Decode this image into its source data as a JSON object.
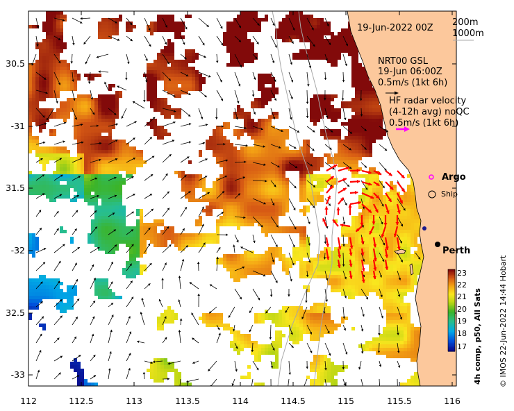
{
  "map": {
    "date_label": "19-Jun-2022 00Z",
    "isobath_labels": [
      "200m",
      "1000m"
    ],
    "gsl": {
      "title": "NRT00 GSL",
      "time": "19-Jun 06:00Z",
      "scale": "0.5m/s (1kt 6h)"
    },
    "hf_radar": {
      "title": "HF radar velocity",
      "subtitle": "(4-12h avg) noQC",
      "scale": "0.5m/s (1kt 6h)"
    },
    "legend": {
      "argo": "Argo",
      "ship": "Ship"
    },
    "places": {
      "perth": "Perth"
    },
    "colorbar": {
      "title": "4h comp, p50, All Sats",
      "ticks": [
        "23",
        "22",
        "21",
        "20",
        "19",
        "18",
        "17"
      ],
      "min": 17,
      "max": 23
    },
    "credit": "© IMOS 22-Jun-2022 14:44 Hobart",
    "axes": {
      "lon_ticks": [
        "112",
        "112.5",
        "113",
        "113.5",
        "114",
        "114.5",
        "115",
        "115.5",
        "116"
      ],
      "lat_ticks": [
        "30.5",
        "-31",
        "31.5",
        "-32",
        "32.5",
        "-33"
      ],
      "lon_range": [
        112,
        116.1
      ],
      "lat_range": [
        -30.05,
        -33.1
      ]
    },
    "colors": {
      "land": "#fcc89c",
      "gsl_arrow": "#000000",
      "radar_arrow": "#ff0000",
      "scale_arrow": "#ff00ff",
      "isobath": "#a0a0a0"
    }
  }
}
